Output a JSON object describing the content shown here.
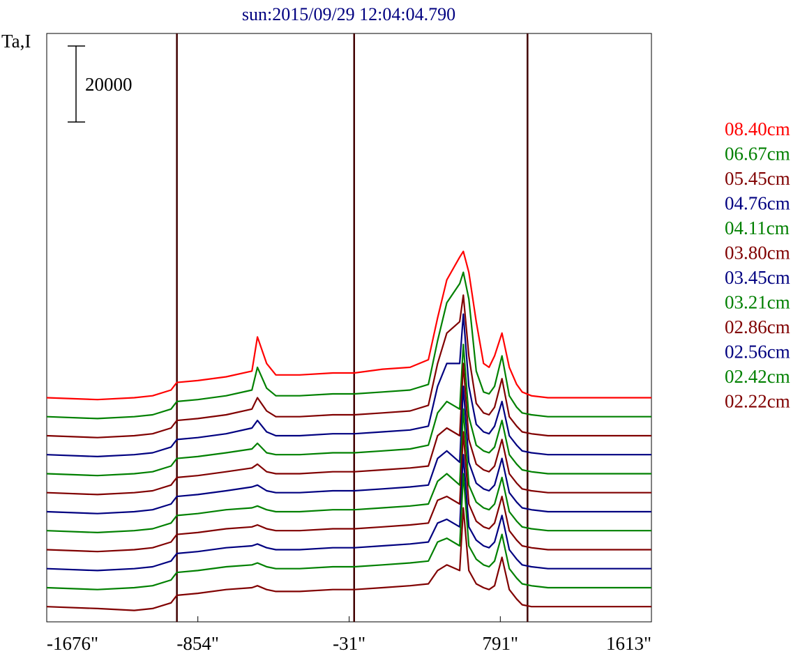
{
  "chart_data": {
    "type": "line",
    "title": "sun:2015/09/29 12:04:04.790",
    "ylabel": "Ta,I",
    "xlim": [
      -1676,
      1613
    ],
    "x_tick_labels": [
      "-1676\"",
      "-854\"",
      "-31\"",
      "791\"",
      "1613\""
    ],
    "x_ticks": [
      -1676,
      -854,
      -31,
      791,
      1613
    ],
    "vertical_lines_x": [
      -968,
      -4,
      939
    ],
    "scale_bar_label": "20000",
    "scale_bar_value": 20000,
    "grid": false,
    "legend_position": "right",
    "x_profile": [
      -1676,
      -1400,
      -1200,
      -1100,
      -1000,
      -968,
      -854,
      -700,
      -560,
      -530,
      -480,
      -430,
      -300,
      -120,
      -4,
      150,
      300,
      400,
      450,
      500,
      570,
      590,
      620,
      660,
      700,
      730,
      760,
      800,
      840,
      880,
      910,
      960,
      1050,
      1200,
      1613
    ],
    "series": [
      {
        "name": "08.40cm",
        "color": "#ff0000",
        "baseline": 63000,
        "y": [
          63000,
          62500,
          63000,
          63500,
          65000,
          67000,
          67500,
          68500,
          70000,
          79000,
          72000,
          69000,
          69000,
          69500,
          69500,
          70500,
          71000,
          73000,
          84000,
          94000,
          100000,
          101500,
          96000,
          83000,
          72000,
          71000,
          74000,
          80000,
          71000,
          66500,
          64500,
          63500,
          63000,
          63000,
          63000
        ]
      },
      {
        "name": "06.67cm",
        "color": "#008000",
        "baseline": 58000,
        "y": [
          58000,
          57500,
          58000,
          58500,
          60000,
          62000,
          62500,
          63500,
          65000,
          71000,
          65500,
          63500,
          63500,
          64000,
          64000,
          64500,
          65000,
          66500,
          78000,
          88000,
          93000,
          96000,
          89000,
          70000,
          64500,
          64000,
          66000,
          74000,
          63500,
          60500,
          59000,
          58500,
          58000,
          58000,
          58000
        ]
      },
      {
        "name": "05.45cm",
        "color": "#800000",
        "baseline": 53000,
        "y": [
          53000,
          52500,
          53000,
          53500,
          55000,
          57000,
          57500,
          58500,
          60000,
          63000,
          59500,
          58000,
          58000,
          58500,
          58500,
          59000,
          59500,
          61000,
          72000,
          80000,
          83000,
          90000,
          74000,
          61500,
          59000,
          58500,
          60500,
          68000,
          58000,
          55500,
          54000,
          53500,
          53000,
          53000,
          53000
        ]
      },
      {
        "name": "04.76cm",
        "color": "#000080",
        "baseline": 48000,
        "y": [
          48000,
          47500,
          48000,
          48500,
          50000,
          52000,
          52500,
          53500,
          55000,
          57000,
          54000,
          53000,
          53000,
          53500,
          53500,
          54000,
          54500,
          55500,
          66000,
          72000,
          72000,
          85000,
          66000,
          56000,
          54000,
          53500,
          55500,
          62000,
          53000,
          50500,
          49000,
          48500,
          48000,
          48000,
          48000
        ]
      },
      {
        "name": "04.11cm",
        "color": "#008000",
        "baseline": 43000,
        "y": [
          43000,
          42500,
          43000,
          43500,
          45000,
          47000,
          47500,
          48500,
          49500,
          51000,
          48500,
          48000,
          48000,
          48500,
          48500,
          49000,
          49500,
          50500,
          59000,
          62000,
          60000,
          77000,
          58000,
          50500,
          49000,
          48500,
          50000,
          57000,
          48000,
          45500,
          44000,
          43500,
          43000,
          43000,
          43000
        ]
      },
      {
        "name": "03.80cm",
        "color": "#800000",
        "baseline": 38000,
        "y": [
          38000,
          37500,
          38000,
          38500,
          40000,
          42000,
          42500,
          43500,
          44500,
          45500,
          43500,
          43000,
          43000,
          43500,
          43500,
          44000,
          44500,
          45000,
          53000,
          55000,
          53000,
          72000,
          52000,
          45500,
          44000,
          43500,
          45000,
          52000,
          43000,
          40500,
          39000,
          38500,
          38000,
          38000,
          38000
        ]
      },
      {
        "name": "03.45cm",
        "color": "#000080",
        "baseline": 33000,
        "y": [
          33000,
          32500,
          33000,
          33500,
          35000,
          37000,
          37500,
          38500,
          39500,
          40000,
          38500,
          38000,
          38000,
          38500,
          38500,
          39000,
          39500,
          40000,
          47000,
          49000,
          46000,
          66000,
          46000,
          40500,
          39000,
          38500,
          40000,
          47000,
          38000,
          35500,
          34000,
          33500,
          33000,
          33000,
          33000
        ]
      },
      {
        "name": "03.21cm",
        "color": "#008000",
        "baseline": 28000,
        "y": [
          28000,
          27500,
          28000,
          28500,
          30000,
          32000,
          32500,
          33500,
          34000,
          34500,
          33500,
          33000,
          33000,
          33500,
          33500,
          34000,
          34500,
          35000,
          41000,
          43000,
          40000,
          60000,
          40000,
          35500,
          34000,
          33500,
          35000,
          42000,
          33000,
          30500,
          29000,
          28500,
          28000,
          28000,
          28000
        ]
      },
      {
        "name": "02.86cm",
        "color": "#800000",
        "baseline": 23000,
        "y": [
          23000,
          22500,
          23000,
          23500,
          25000,
          27000,
          27500,
          28500,
          29000,
          29500,
          28500,
          28000,
          28000,
          28500,
          28500,
          29000,
          29500,
          30000,
          36000,
          37000,
          35000,
          54000,
          35000,
          30500,
          29000,
          28500,
          30000,
          37000,
          28000,
          25500,
          24000,
          23500,
          23000,
          23000,
          23000
        ]
      },
      {
        "name": "02.56cm",
        "color": "#000080",
        "baseline": 18000,
        "y": [
          18000,
          17500,
          18000,
          18500,
          20000,
          22000,
          22500,
          23500,
          24000,
          24500,
          23500,
          23000,
          23000,
          23500,
          23500,
          24000,
          24500,
          25000,
          30000,
          31000,
          29000,
          48000,
          29000,
          25500,
          24000,
          23500,
          25000,
          32000,
          23000,
          20500,
          19000,
          18500,
          18000,
          18000,
          18000
        ]
      },
      {
        "name": "02.42cm",
        "color": "#008000",
        "baseline": 13000,
        "y": [
          13000,
          12500,
          13000,
          13500,
          15000,
          17000,
          17500,
          18500,
          19000,
          19500,
          18500,
          18000,
          18000,
          18500,
          18500,
          19000,
          19500,
          20000,
          25000,
          26000,
          24000,
          43000,
          24000,
          20500,
          19000,
          18500,
          20000,
          27000,
          18000,
          15500,
          14000,
          13500,
          13000,
          13000,
          13000
        ]
      },
      {
        "name": "02.22cm",
        "color": "#800000",
        "baseline": 8000,
        "y": [
          8000,
          7500,
          7000,
          7500,
          9000,
          11000,
          11500,
          12500,
          13000,
          13500,
          12500,
          12000,
          12000,
          12500,
          12500,
          13000,
          13500,
          14000,
          17500,
          19000,
          17500,
          34000,
          17500,
          14000,
          13000,
          12500,
          13500,
          21000,
          12500,
          10000,
          8500,
          8000,
          8000,
          8000,
          8000
        ]
      }
    ]
  }
}
